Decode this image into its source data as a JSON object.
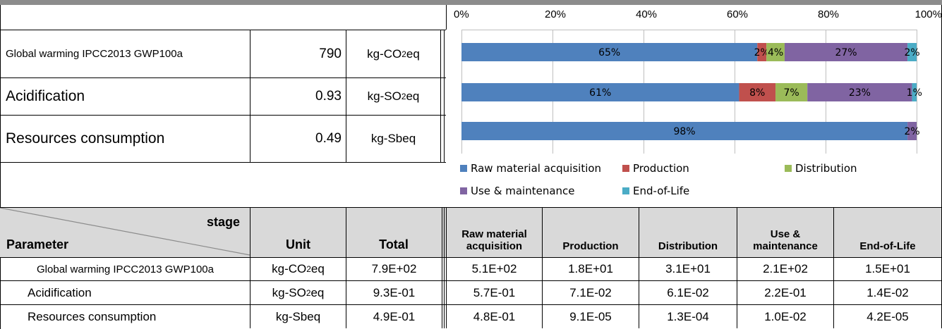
{
  "summary": {
    "rows": [
      {
        "name": "Global warming IPCC2013 GWP100a",
        "value": "790",
        "unit_main": "kg-CO",
        "unit_sub": "2",
        "unit_tail": "eq"
      },
      {
        "name": "Acidification",
        "value": "0.93",
        "unit_main": "kg-SO",
        "unit_sub": "2",
        "unit_tail": "eq"
      },
      {
        "name": "Resources consumption",
        "value": "0.49",
        "unit_main": "kg-Sbeq",
        "unit_sub": "",
        "unit_tail": ""
      }
    ]
  },
  "chart_data": {
    "type": "bar",
    "orientation": "horizontal",
    "stacked": "percent",
    "categories": [
      "Global warming IPCC2013 GWP100a",
      "Acidification",
      "Resources consumption"
    ],
    "series": [
      {
        "name": "Raw material acquisition",
        "color": "#4f81bd",
        "values": [
          65,
          61,
          98
        ],
        "labels": [
          "65%",
          "61%",
          "98%"
        ]
      },
      {
        "name": "Production",
        "color": "#c0504d",
        "values": [
          2,
          8,
          0
        ],
        "labels": [
          "2%",
          "8%",
          ""
        ]
      },
      {
        "name": "Distribution",
        "color": "#9bbb59",
        "values": [
          4,
          7,
          0
        ],
        "labels": [
          "4%",
          "7%",
          ""
        ]
      },
      {
        "name": "Use & maintenance",
        "color": "#8064a2",
        "values": [
          27,
          23,
          2
        ],
        "labels": [
          "27%",
          "23%",
          "2%"
        ]
      },
      {
        "name": "End-of-Life",
        "color": "#4bacc6",
        "values": [
          2,
          1,
          0
        ],
        "labels": [
          "2%",
          "1%",
          ""
        ]
      }
    ],
    "xlim": [
      0,
      100
    ],
    "ticks": [
      "0%",
      "20%",
      "40%",
      "60%",
      "80%",
      "100%"
    ],
    "tick_values": [
      0,
      20,
      40,
      60,
      80,
      100
    ],
    "grid": true,
    "legend_position": "bottom"
  },
  "table": {
    "corner_top": "stage",
    "corner_bottom": "Parameter",
    "headers": [
      "Unit",
      "Total",
      "Raw material acquisition",
      "Production",
      "Distribution",
      "Use & maintenance",
      "End-of-Life"
    ],
    "rows": [
      {
        "name": "Global warming IPCC2013 GWP100a",
        "unit_main": "kg-CO",
        "unit_sub": "2",
        "unit_tail": "eq",
        "values": [
          "7.9E+02",
          "5.1E+02",
          "1.8E+01",
          "3.1E+01",
          "2.1E+02",
          "1.5E+01"
        ]
      },
      {
        "name": "Acidification",
        "unit_main": "kg-SO",
        "unit_sub": "2",
        "unit_tail": "eq",
        "values": [
          "9.3E-01",
          "5.7E-01",
          "7.1E-02",
          "6.1E-02",
          "2.2E-01",
          "1.4E-02"
        ]
      },
      {
        "name": "Resources consumption",
        "unit_main": "kg-Sbeq",
        "unit_sub": "",
        "unit_tail": "",
        "values": [
          "4.9E-01",
          "4.8E-01",
          "9.1E-05",
          "1.3E-04",
          "1.0E-02",
          "4.2E-05"
        ]
      }
    ]
  }
}
